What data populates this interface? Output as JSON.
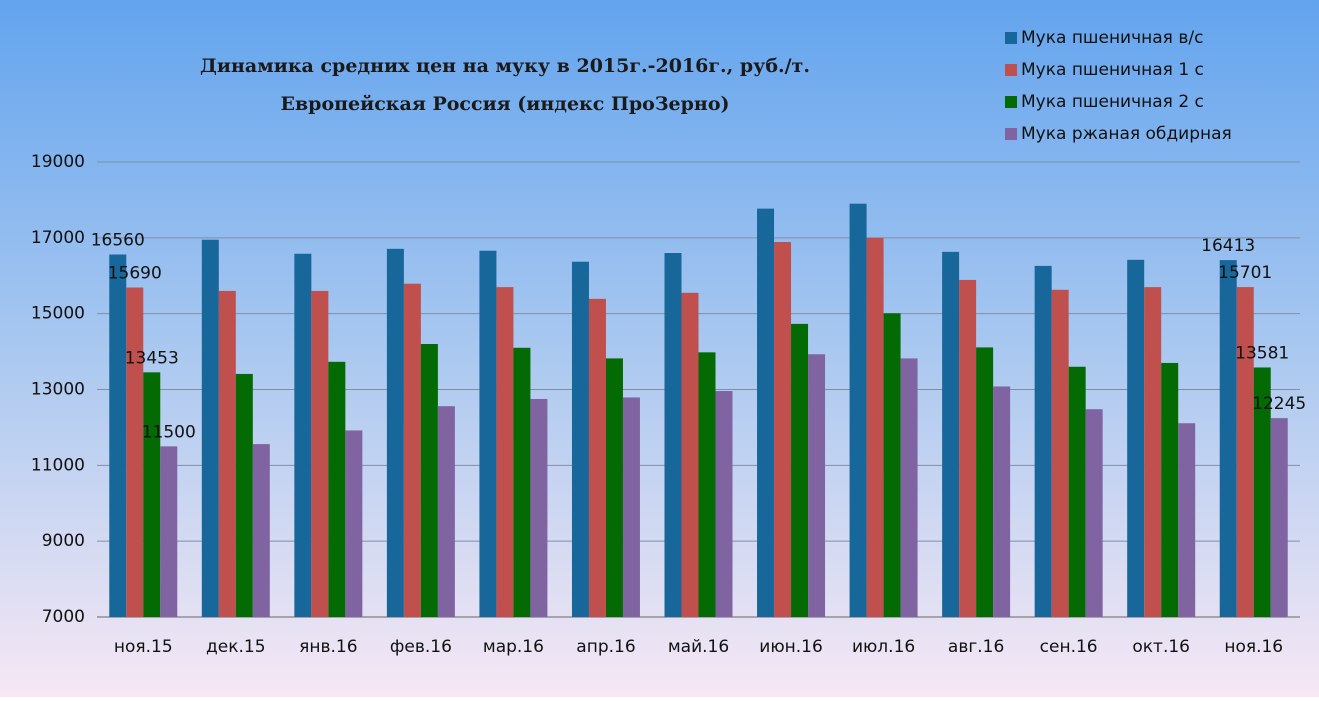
{
  "chart_data": {
    "type": "bar",
    "title": [
      "Динамика средних цен на муку в 2015г.-2016г., руб./т.",
      "Европейская Россия (индекс ПроЗерно)"
    ],
    "categories": [
      "ноя.15",
      "дек.15",
      "янв.16",
      "фев.16",
      "мар.16",
      "апр.16",
      "май.16",
      "июн.16",
      "июл.16",
      "авг.16",
      "сен.16",
      "окт.16",
      "ноя.16"
    ],
    "series": [
      {
        "name": "Мука пшеничная в/с",
        "color": "#17679a",
        "values": [
          16560,
          16950,
          16580,
          16710,
          16660,
          16370,
          16600,
          17770,
          17900,
          16630,
          16260,
          16420,
          16413
        ],
        "labeled": [
          0,
          12
        ]
      },
      {
        "name": "Мука пшеничная 1 с",
        "color": "#c0504d",
        "values": [
          15690,
          15600,
          15600,
          15790,
          15700,
          15390,
          15550,
          16890,
          17000,
          15890,
          15630,
          15700,
          15701
        ],
        "labeled": [
          0,
          12
        ]
      },
      {
        "name": "Мука пшеничная 2 с",
        "color": "#046a04",
        "values": [
          13453,
          13410,
          13730,
          14200,
          14100,
          13820,
          13980,
          14730,
          15010,
          14110,
          13600,
          13700,
          13581
        ],
        "labeled": [
          0,
          12
        ]
      },
      {
        "name": "Мука ржаная обдирная",
        "color": "#8064a2",
        "values": [
          11500,
          11560,
          11920,
          12560,
          12750,
          12790,
          12960,
          13930,
          13820,
          13080,
          12480,
          12110,
          12245
        ],
        "labeled": [
          0,
          12
        ]
      }
    ],
    "ylim": [
      7000,
      19000
    ],
    "yticks": [
      7000,
      9000,
      11000,
      13000,
      15000,
      17000,
      19000
    ],
    "grid": true,
    "legend": "top-right"
  }
}
